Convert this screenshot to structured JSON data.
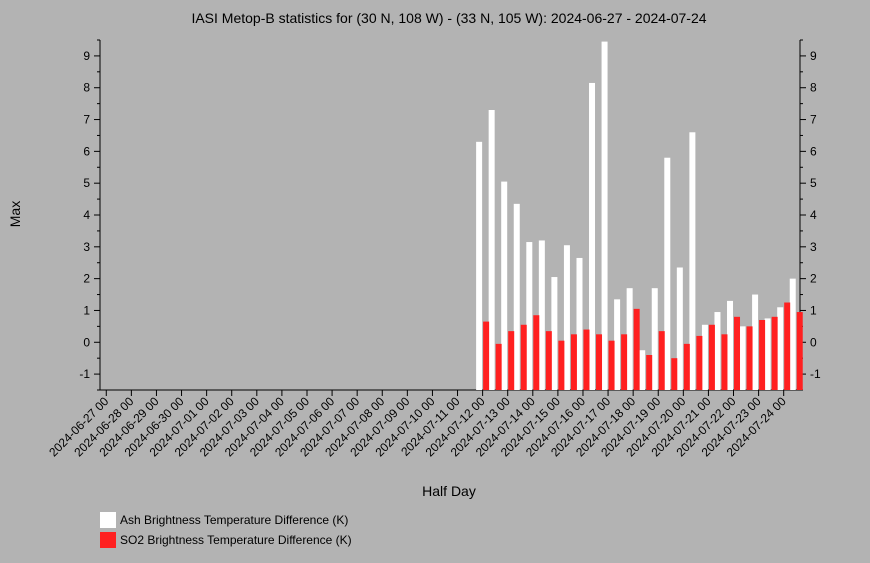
{
  "chart_data": {
    "type": "bar",
    "title": "IASI Metop-B statistics for (30 N, 108 W) - (33 N, 105 W): 2024-06-27 - 2024-07-24",
    "xlabel": "Half Day",
    "ylabel": "Max",
    "ylim": [
      -1.5,
      9.5
    ],
    "yticks": [
      -1,
      0,
      1,
      2,
      3,
      4,
      5,
      6,
      7,
      8,
      9
    ],
    "xlim": [
      -0.5,
      55.3
    ],
    "categories": [
      "2024-06-27 00",
      "2024-06-28 00",
      "2024-06-29 00",
      "2024-06-30 00",
      "2024-07-01 00",
      "2024-07-02 00",
      "2024-07-03 00",
      "2024-07-04 00",
      "2024-07-05 00",
      "2024-07-06 00",
      "2024-07-07 00",
      "2024-07-08 00",
      "2024-07-09 00",
      "2024-07-10 00",
      "2024-07-11 00",
      "2024-07-12 00",
      "2024-07-13 00",
      "2024-07-14 00",
      "2024-07-15 00",
      "2024-07-16 00",
      "2024-07-17 00",
      "2024-07-18 00",
      "2024-07-19 00",
      "2024-07-20 00",
      "2024-07-21 00",
      "2024-07-22 00",
      "2024-07-23 00",
      "2024-07-24 00"
    ],
    "x": [
      30,
      31,
      32,
      33,
      34,
      35,
      36,
      37,
      38,
      39,
      40,
      41,
      42,
      43,
      44,
      45,
      46,
      47,
      48,
      49,
      50,
      51,
      52,
      53,
      54,
      55
    ],
    "series": [
      {
        "name": "Ash Brightness Temperature Difference (K)",
        "color": "#ffffff",
        "values": [
          6.3,
          7.3,
          5.05,
          4.35,
          3.15,
          3.2,
          2.05,
          3.05,
          2.65,
          8.15,
          9.45,
          1.35,
          1.7,
          -0.25,
          1.7,
          5.8,
          2.35,
          6.6,
          0.55,
          0.95,
          1.3,
          0.5,
          1.5,
          0.75,
          1.1,
          2.0
        ]
      },
      {
        "name": "SO2 Brightness Temperature Difference (K)",
        "color": "#ff2020",
        "values": [
          0.65,
          -0.05,
          0.35,
          0.55,
          0.85,
          0.35,
          0.05,
          0.25,
          0.4,
          0.25,
          0.05,
          0.25,
          1.05,
          -0.4,
          0.35,
          -0.5,
          -0.05,
          0.2,
          0.55,
          0.25,
          0.8,
          0.5,
          0.7,
          0.8,
          1.25,
          0.95
        ]
      }
    ],
    "legend_position": "bottom-left",
    "grid": false
  }
}
